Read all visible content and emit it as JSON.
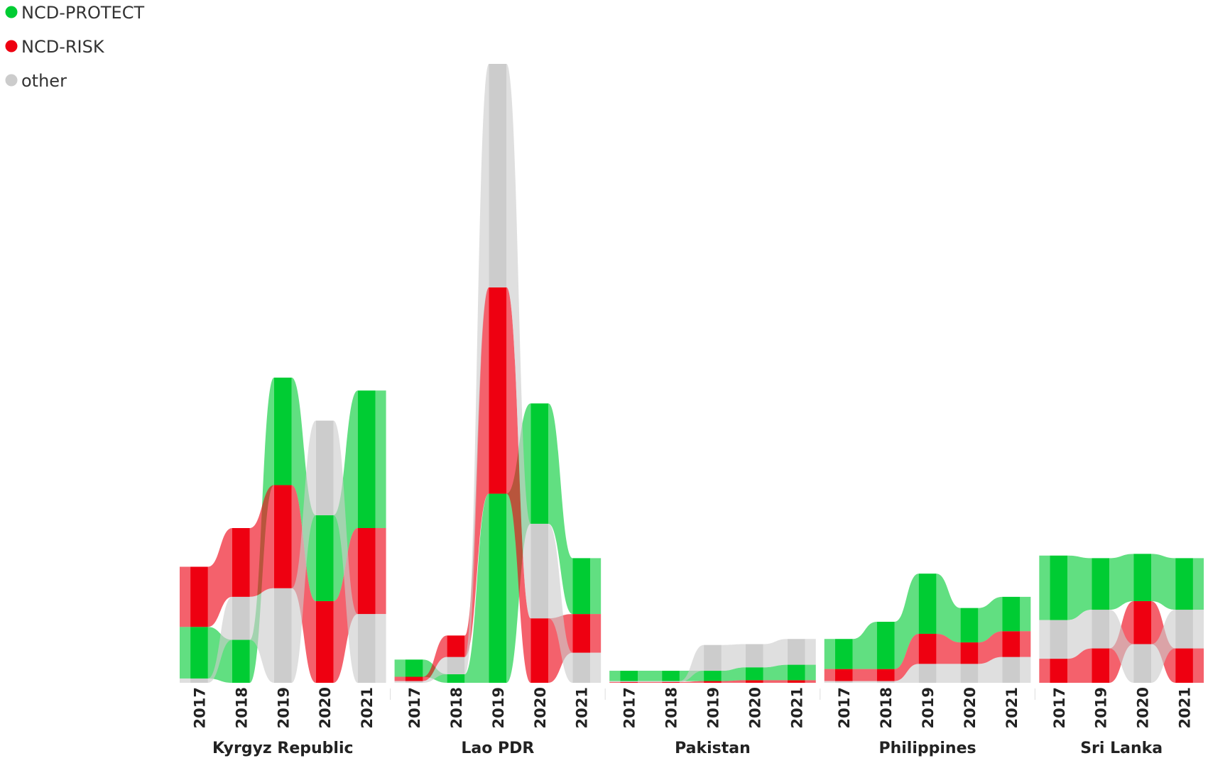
{
  "chart_data": {
    "type": "area",
    "subtype": "ribbon",
    "title": "",
    "xlabel": "",
    "ylabel": "",
    "legend": {
      "placement": "top-left",
      "items": [
        {
          "name": "NCD-PROTECT",
          "color": "#00cc33"
        },
        {
          "name": "NCD-RISK",
          "color": "#ee0011"
        },
        {
          "name": "other",
          "color": "#cccccc"
        }
      ]
    },
    "ylim": [
      0,
      7.2
    ],
    "grid": false,
    "series_colors": {
      "NCD-PROTECT": "#00cc33",
      "NCD-RISK": "#ee0011",
      "other": "#cccccc"
    },
    "groups": [
      {
        "name": "Kyrgyz Republic",
        "years": [
          {
            "label": "2017",
            "values": {
              "NCD-PROTECT": 0.6,
              "NCD-RISK": 0.7,
              "other": 0.05
            },
            "order": [
              "other",
              "NCD-PROTECT",
              "NCD-RISK"
            ]
          },
          {
            "label": "2018",
            "values": {
              "NCD-PROTECT": 0.5,
              "NCD-RISK": 0.8,
              "other": 0.5
            },
            "order": [
              "NCD-PROTECT",
              "other",
              "NCD-RISK"
            ]
          },
          {
            "label": "2019",
            "values": {
              "NCD-PROTECT": 1.25,
              "NCD-RISK": 1.2,
              "other": 1.1
            },
            "order": [
              "other",
              "NCD-RISK",
              "NCD-PROTECT"
            ]
          },
          {
            "label": "2020",
            "values": {
              "NCD-PROTECT": 1.0,
              "NCD-RISK": 0.95,
              "other": 1.1
            },
            "order": [
              "NCD-RISK",
              "NCD-PROTECT",
              "other"
            ]
          },
          {
            "label": "2021",
            "values": {
              "NCD-PROTECT": 1.6,
              "NCD-RISK": 1.0,
              "other": 0.8
            },
            "order": [
              "other",
              "NCD-RISK",
              "NCD-PROTECT"
            ]
          }
        ]
      },
      {
        "name": "Lao PDR",
        "years": [
          {
            "label": "2017",
            "values": {
              "NCD-PROTECT": 0.2,
              "NCD-RISK": 0.05,
              "other": 0.02
            },
            "order": [
              "other",
              "NCD-RISK",
              "NCD-PROTECT"
            ]
          },
          {
            "label": "2018",
            "values": {
              "NCD-PROTECT": 0.1,
              "NCD-RISK": 0.25,
              "other": 0.2
            },
            "order": [
              "NCD-PROTECT",
              "other",
              "NCD-RISK"
            ]
          },
          {
            "label": "2019",
            "values": {
              "NCD-PROTECT": 2.2,
              "NCD-RISK": 2.4,
              "other": 2.6
            },
            "order": [
              "NCD-PROTECT",
              "NCD-RISK",
              "other"
            ]
          },
          {
            "label": "2020",
            "values": {
              "NCD-PROTECT": 1.4,
              "NCD-RISK": 0.75,
              "other": 1.1
            },
            "order": [
              "NCD-RISK",
              "other",
              "NCD-PROTECT"
            ]
          },
          {
            "label": "2021",
            "values": {
              "NCD-PROTECT": 0.65,
              "NCD-RISK": 0.45,
              "other": 0.35
            },
            "order": [
              "other",
              "NCD-RISK",
              "NCD-PROTECT"
            ]
          }
        ]
      },
      {
        "name": "Pakistan",
        "years": [
          {
            "label": "2017",
            "values": {
              "NCD-PROTECT": 0.12,
              "NCD-RISK": 0.01,
              "other": 0.01
            },
            "order": [
              "NCD-RISK",
              "other",
              "NCD-PROTECT"
            ]
          },
          {
            "label": "2018",
            "values": {
              "NCD-PROTECT": 0.12,
              "NCD-RISK": 0.01,
              "other": 0.01
            },
            "order": [
              "NCD-RISK",
              "other",
              "NCD-PROTECT"
            ]
          },
          {
            "label": "2019",
            "values": {
              "NCD-PROTECT": 0.12,
              "NCD-RISK": 0.02,
              "other": 0.3
            },
            "order": [
              "NCD-RISK",
              "NCD-PROTECT",
              "other"
            ]
          },
          {
            "label": "2020",
            "values": {
              "NCD-PROTECT": 0.15,
              "NCD-RISK": 0.03,
              "other": 0.27
            },
            "order": [
              "NCD-RISK",
              "NCD-PROTECT",
              "other"
            ]
          },
          {
            "label": "2021",
            "values": {
              "NCD-PROTECT": 0.18,
              "NCD-RISK": 0.03,
              "other": 0.3
            },
            "order": [
              "NCD-RISK",
              "NCD-PROTECT",
              "other"
            ]
          }
        ]
      },
      {
        "name": "Philippines",
        "years": [
          {
            "label": "2017",
            "values": {
              "NCD-PROTECT": 0.35,
              "NCD-RISK": 0.14,
              "other": 0.02
            },
            "order": [
              "other",
              "NCD-RISK",
              "NCD-PROTECT"
            ]
          },
          {
            "label": "2018",
            "values": {
              "NCD-PROTECT": 0.55,
              "NCD-RISK": 0.14,
              "other": 0.02
            },
            "order": [
              "other",
              "NCD-RISK",
              "NCD-PROTECT"
            ]
          },
          {
            "label": "2019",
            "values": {
              "NCD-PROTECT": 0.7,
              "NCD-RISK": 0.35,
              "other": 0.22
            },
            "order": [
              "other",
              "NCD-RISK",
              "NCD-PROTECT"
            ]
          },
          {
            "label": "2020",
            "values": {
              "NCD-PROTECT": 0.4,
              "NCD-RISK": 0.25,
              "other": 0.22
            },
            "order": [
              "other",
              "NCD-RISK",
              "NCD-PROTECT"
            ]
          },
          {
            "label": "2021",
            "values": {
              "NCD-PROTECT": 0.4,
              "NCD-RISK": 0.3,
              "other": 0.3
            },
            "order": [
              "other",
              "NCD-RISK",
              "NCD-PROTECT"
            ]
          }
        ]
      },
      {
        "name": "Sri Lanka",
        "years": [
          {
            "label": "2017",
            "values": {
              "NCD-PROTECT": 0.75,
              "NCD-RISK": 0.28,
              "other": 0.45
            },
            "order": [
              "NCD-RISK",
              "other",
              "NCD-PROTECT"
            ]
          },
          {
            "label": "2019",
            "values": {
              "NCD-PROTECT": 0.6,
              "NCD-RISK": 0.4,
              "other": 0.45
            },
            "order": [
              "NCD-RISK",
              "other",
              "NCD-PROTECT"
            ]
          },
          {
            "label": "2020",
            "values": {
              "NCD-PROTECT": 0.55,
              "NCD-RISK": 0.5,
              "other": 0.45
            },
            "order": [
              "other",
              "NCD-RISK",
              "NCD-PROTECT"
            ]
          },
          {
            "label": "2021",
            "values": {
              "NCD-PROTECT": 0.6,
              "NCD-RISK": 0.4,
              "other": 0.45
            },
            "order": [
              "NCD-RISK",
              "other",
              "NCD-PROTECT"
            ]
          }
        ]
      }
    ]
  }
}
